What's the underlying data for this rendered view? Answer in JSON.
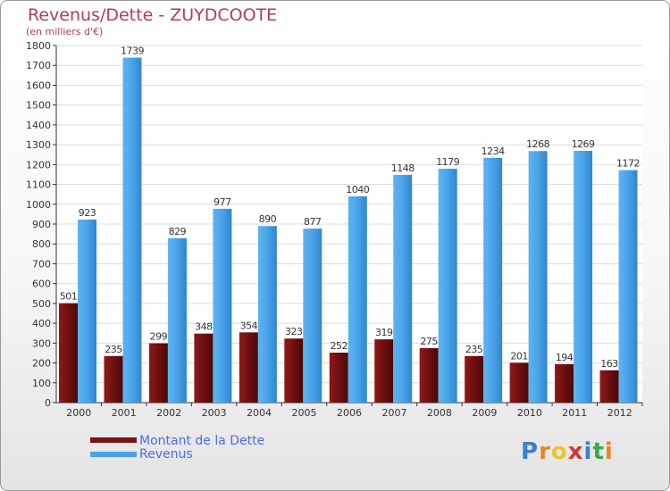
{
  "chart_data": {
    "type": "bar",
    "title": "Revenus/Dette - ZUYDCOOTE",
    "subtitle": "(en milliers d'€)",
    "categories": [
      "2000",
      "2001",
      "2002",
      "2003",
      "2004",
      "2005",
      "2006",
      "2007",
      "2008",
      "2009",
      "2010",
      "2011",
      "2012"
    ],
    "series": [
      {
        "name": "Montant de la Dette",
        "values": [
          501,
          235,
          299,
          348,
          354,
          323,
          252,
          319,
          275,
          235,
          201,
          194,
          163
        ],
        "color": "#7a1414"
      },
      {
        "name": "Revenus",
        "values": [
          923,
          1739,
          829,
          977,
          890,
          877,
          1040,
          1148,
          1179,
          1234,
          1268,
          1269,
          1172
        ],
        "color": "#4aa3e8"
      }
    ],
    "ylim": [
      0,
      1800
    ],
    "yticks": [
      0,
      100,
      200,
      300,
      400,
      500,
      600,
      700,
      800,
      900,
      1000,
      1100,
      1200,
      1300,
      1400,
      1500,
      1600,
      1700,
      1800
    ],
    "grid": true,
    "legend_position": "bottom-left"
  },
  "logo": {
    "text": "Proxiti",
    "letters": [
      "P",
      "r",
      "o",
      "x",
      "i",
      "t",
      "i"
    ],
    "colors": [
      "#3a7fd0",
      "#e8832a",
      "#e8c72a",
      "#d03a3a",
      "#3a7fd0",
      "#3aa84a",
      "#e8832a"
    ]
  }
}
